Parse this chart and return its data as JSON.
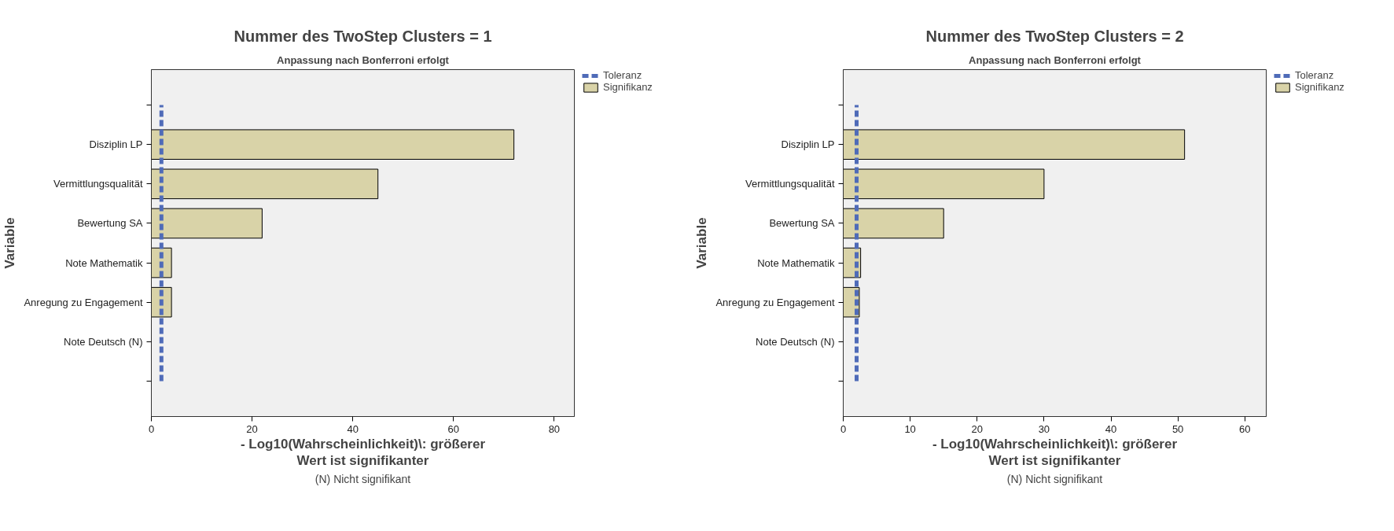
{
  "chart_data": [
    {
      "type": "bar",
      "orientation": "horizontal",
      "title": "Nummer des TwoStep Clusters = 1",
      "subtitle": "Anpassung nach Bonferroni erfolgt",
      "xlabel": "- Log10(Wahrscheinlichkeit)\\: größerer Wert ist signifikanter",
      "ylabel": "Variable",
      "categories": [
        null,
        "Disziplin LP",
        "Vermittlungsqualität",
        "Bewertung SA",
        "Note Mathematik",
        "Anregung zu Engagement",
        "Note Deutsch (N)",
        null
      ],
      "series": [
        {
          "name": "Signifikanz",
          "color": "#d9d3a8",
          "values": [
            null,
            72,
            45,
            22,
            4,
            4,
            null,
            null
          ]
        }
      ],
      "xlim": [
        0,
        84
      ],
      "xticks": [
        0,
        20,
        40,
        60,
        80
      ],
      "ref_lines": [
        {
          "axis": "x",
          "value": 2,
          "label": "Toleranz",
          "color": "#4f6bb8",
          "line_style": "dashed"
        }
      ],
      "legend": "right",
      "annotations": [
        "(N) Nicht signifikant"
      ]
    },
    {
      "type": "bar",
      "orientation": "horizontal",
      "title": "Nummer des TwoStep Clusters = 2",
      "subtitle": "Anpassung nach Bonferroni erfolgt",
      "xlabel": "- Log10(Wahrscheinlichkeit)\\: größerer Wert ist signifikanter",
      "ylabel": "Variable",
      "categories": [
        null,
        "Disziplin LP",
        "Vermittlungsqualität",
        "Bewertung SA",
        "Note Mathematik",
        "Anregung zu Engagement",
        "Note Deutsch (N)",
        null
      ],
      "series": [
        {
          "name": "Signifikanz",
          "color": "#d9d3a8",
          "values": [
            null,
            51,
            30,
            15,
            2.6,
            2.4,
            null,
            null
          ]
        }
      ],
      "xlim": [
        0,
        63.2
      ],
      "xticks": [
        0,
        10,
        20,
        30,
        40,
        50,
        60
      ],
      "ref_lines": [
        {
          "axis": "x",
          "value": 2,
          "label": "Toleranz",
          "color": "#4f6bb8",
          "line_style": "dashed"
        }
      ],
      "legend": "right",
      "annotations": [
        "(N) Nicht signifikant"
      ]
    }
  ]
}
